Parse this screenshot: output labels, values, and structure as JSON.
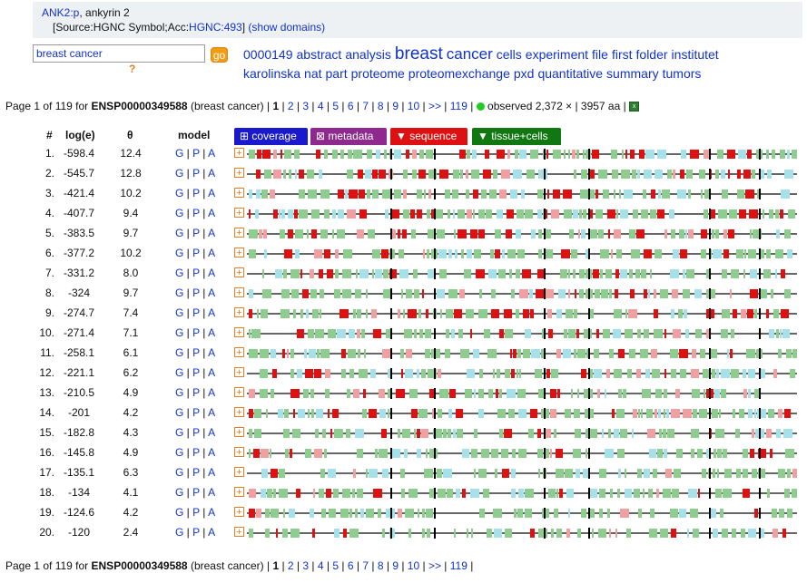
{
  "header": {
    "gene_link": "ANK2:p",
    "gene_desc": ", ankyrin 2",
    "source_prefix": "[Source:HGNC Symbol;Acc:",
    "source_acc": "HGNC:493",
    "source_suffix": "]",
    "show_domains": "(show domains)"
  },
  "search": {
    "value": "breast cancer",
    "go_label": "go",
    "help": "?"
  },
  "keywords": [
    {
      "text": "0000149",
      "size": 14
    },
    {
      "text": "abstract",
      "size": 14
    },
    {
      "text": "analysis",
      "size": 14
    },
    {
      "text": "breast",
      "size": 19
    },
    {
      "text": "cancer",
      "size": 17
    },
    {
      "text": "cells",
      "size": 14
    },
    {
      "text": "experiment",
      "size": 14
    },
    {
      "text": "file",
      "size": 14
    },
    {
      "text": "first",
      "size": 14
    },
    {
      "text": "folder",
      "size": 14
    },
    {
      "text": "institutet",
      "size": 14
    },
    {
      "text": "karolinska",
      "size": 14
    },
    {
      "text": "nat",
      "size": 14
    },
    {
      "text": "part",
      "size": 14
    },
    {
      "text": "proteome",
      "size": 14
    },
    {
      "text": "proteomexchange",
      "size": 14
    },
    {
      "text": "pxd",
      "size": 14
    },
    {
      "text": "quantitative",
      "size": 14
    },
    {
      "text": "summary",
      "size": 14
    },
    {
      "text": "tumors",
      "size": 14
    }
  ],
  "pager": {
    "prefix": "Page 1 of 119 for ",
    "protein": "ENSP00000349588",
    "query": " (breast cancer) | ",
    "current": "1",
    "pages": [
      "2",
      "3",
      "4",
      "5",
      "6",
      "7",
      "8",
      "9",
      "10",
      ">>",
      "119"
    ],
    "observed": " observed 2,372 × | 3957 aa |"
  },
  "columns": {
    "num": "#",
    "loge": "log(e)",
    "theta": "θ",
    "model": "model"
  },
  "tabs": [
    {
      "label": "⊞ coverage",
      "color": "#1a1acc"
    },
    {
      "label": "⊠ metadata",
      "color": "#8e2a8e"
    },
    {
      "label": "▼ sequence",
      "color": "#dd1111"
    },
    {
      "label": "▼ tissue+cells",
      "color": "#117711"
    }
  ],
  "model_links": [
    "G",
    "P",
    "A"
  ],
  "rows": [
    {
      "num": "1.",
      "loge": "-598.4",
      "theta": "12.4"
    },
    {
      "num": "2.",
      "loge": "-545.7",
      "theta": "12.8"
    },
    {
      "num": "3.",
      "loge": "-421.4",
      "theta": "10.2"
    },
    {
      "num": "4.",
      "loge": "-407.7",
      "theta": "9.4"
    },
    {
      "num": "5.",
      "loge": "-383.5",
      "theta": "9.7"
    },
    {
      "num": "6.",
      "loge": "-377.2",
      "theta": "10.2"
    },
    {
      "num": "7.",
      "loge": "-331.2",
      "theta": "8.0"
    },
    {
      "num": "8.",
      "loge": "-324",
      "theta": "9.7"
    },
    {
      "num": "9.",
      "loge": "-274.7",
      "theta": "7.4"
    },
    {
      "num": "10.",
      "loge": "-271.4",
      "theta": "7.1"
    },
    {
      "num": "11.",
      "loge": "-258.1",
      "theta": "6.1"
    },
    {
      "num": "12.",
      "loge": "-221.1",
      "theta": "6.2"
    },
    {
      "num": "13.",
      "loge": "-210.5",
      "theta": "4.9"
    },
    {
      "num": "14.",
      "loge": "-201",
      "theta": "4.2"
    },
    {
      "num": "15.",
      "loge": "-182.8",
      "theta": "4.3"
    },
    {
      "num": "16.",
      "loge": "-145.8",
      "theta": "4.9"
    },
    {
      "num": "17.",
      "loge": "-135.1",
      "theta": "6.3"
    },
    {
      "num": "18.",
      "loge": "-134",
      "theta": "4.1"
    },
    {
      "num": "19.",
      "loge": "-124.6",
      "theta": "4.2"
    },
    {
      "num": "20.",
      "loge": "-120",
      "theta": "2.4"
    }
  ],
  "colors": {
    "link": "#1133cc",
    "green": "#8fcc8f",
    "red": "#dd1111",
    "pink": "#f0a0a0",
    "cyan": "#a6e0e8",
    "black": "#000000"
  }
}
